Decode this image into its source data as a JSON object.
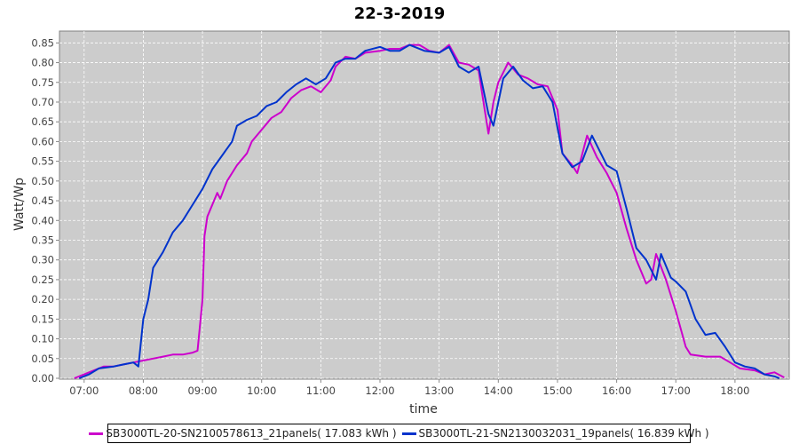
{
  "chart_data": {
    "type": "line",
    "title": "22-3-2019",
    "xlabel": "time",
    "ylabel": "Watt/Wp",
    "xlim": [
      "06:35",
      "18:55"
    ],
    "ylim": [
      0,
      0.88
    ],
    "x_ticks": [
      "07:00",
      "08:00",
      "09:00",
      "10:00",
      "11:00",
      "12:00",
      "13:00",
      "14:00",
      "15:00",
      "16:00",
      "17:00",
      "18:00"
    ],
    "y_ticks": [
      "0.00",
      "0.05",
      "0.10",
      "0.15",
      "0.20",
      "0.25",
      "0.30",
      "0.35",
      "0.40",
      "0.45",
      "0.50",
      "0.55",
      "0.60",
      "0.65",
      "0.70",
      "0.75",
      "0.80",
      "0.85"
    ],
    "grid": true,
    "background": "#cccccc",
    "legend_placement": "bottom",
    "series": [
      {
        "name": "SB3000TL-20-SN2100578613_21panels( 17.083 kWh )",
        "color": "#cc00cc",
        "points": [
          [
            "06:50",
            0.0
          ],
          [
            "07:00",
            0.01
          ],
          [
            "07:10",
            0.02
          ],
          [
            "07:20",
            0.03
          ],
          [
            "07:30",
            0.03
          ],
          [
            "07:40",
            0.035
          ],
          [
            "07:50",
            0.04
          ],
          [
            "08:00",
            0.045
          ],
          [
            "08:10",
            0.05
          ],
          [
            "08:20",
            0.055
          ],
          [
            "08:30",
            0.06
          ],
          [
            "08:40",
            0.06
          ],
          [
            "08:50",
            0.065
          ],
          [
            "08:55",
            0.07
          ],
          [
            "09:00",
            0.2
          ],
          [
            "09:02",
            0.36
          ],
          [
            "09:05",
            0.41
          ],
          [
            "09:10",
            0.44
          ],
          [
            "09:15",
            0.47
          ],
          [
            "09:18",
            0.455
          ],
          [
            "09:25",
            0.5
          ],
          [
            "09:35",
            0.54
          ],
          [
            "09:45",
            0.57
          ],
          [
            "09:50",
            0.6
          ],
          [
            "10:00",
            0.63
          ],
          [
            "10:10",
            0.66
          ],
          [
            "10:20",
            0.675
          ],
          [
            "10:30",
            0.71
          ],
          [
            "10:40",
            0.73
          ],
          [
            "10:50",
            0.74
          ],
          [
            "11:00",
            0.725
          ],
          [
            "11:10",
            0.755
          ],
          [
            "11:15",
            0.79
          ],
          [
            "11:25",
            0.815
          ],
          [
            "11:35",
            0.81
          ],
          [
            "11:45",
            0.825
          ],
          [
            "12:00",
            0.83
          ],
          [
            "12:10",
            0.835
          ],
          [
            "12:20",
            0.835
          ],
          [
            "12:30",
            0.845
          ],
          [
            "12:40",
            0.845
          ],
          [
            "12:50",
            0.83
          ],
          [
            "13:00",
            0.825
          ],
          [
            "13:10",
            0.845
          ],
          [
            "13:20",
            0.8
          ],
          [
            "13:30",
            0.795
          ],
          [
            "13:40",
            0.78
          ],
          [
            "13:45",
            0.7
          ],
          [
            "13:50",
            0.62
          ],
          [
            "13:55",
            0.7
          ],
          [
            "14:00",
            0.75
          ],
          [
            "14:10",
            0.8
          ],
          [
            "14:20",
            0.77
          ],
          [
            "14:30",
            0.76
          ],
          [
            "14:40",
            0.745
          ],
          [
            "14:50",
            0.74
          ],
          [
            "15:00",
            0.68
          ],
          [
            "15:05",
            0.57
          ],
          [
            "15:15",
            0.54
          ],
          [
            "15:20",
            0.52
          ],
          [
            "15:30",
            0.615
          ],
          [
            "15:40",
            0.56
          ],
          [
            "15:50",
            0.52
          ],
          [
            "16:00",
            0.47
          ],
          [
            "16:10",
            0.38
          ],
          [
            "16:20",
            0.3
          ],
          [
            "16:30",
            0.24
          ],
          [
            "16:35",
            0.25
          ],
          [
            "16:40",
            0.315
          ],
          [
            "16:50",
            0.25
          ],
          [
            "17:00",
            0.17
          ],
          [
            "17:10",
            0.08
          ],
          [
            "17:15",
            0.06
          ],
          [
            "17:30",
            0.055
          ],
          [
            "17:45",
            0.055
          ],
          [
            "17:55",
            0.04
          ],
          [
            "18:05",
            0.025
          ],
          [
            "18:20",
            0.02
          ],
          [
            "18:30",
            0.01
          ],
          [
            "18:40",
            0.015
          ],
          [
            "18:50",
            0.002
          ]
        ]
      },
      {
        "name": "SB3000TL-21-SN2130032031_19panels( 16.839 kWh )",
        "color": "#0033cc",
        "points": [
          [
            "06:55",
            0.0
          ],
          [
            "07:05",
            0.01
          ],
          [
            "07:15",
            0.025
          ],
          [
            "07:30",
            0.03
          ],
          [
            "07:40",
            0.035
          ],
          [
            "07:50",
            0.04
          ],
          [
            "07:55",
            0.03
          ],
          [
            "08:00",
            0.15
          ],
          [
            "08:05",
            0.2
          ],
          [
            "08:10",
            0.28
          ],
          [
            "08:20",
            0.32
          ],
          [
            "08:30",
            0.37
          ],
          [
            "08:40",
            0.4
          ],
          [
            "08:50",
            0.44
          ],
          [
            "09:00",
            0.48
          ],
          [
            "09:10",
            0.53
          ],
          [
            "09:20",
            0.565
          ],
          [
            "09:30",
            0.6
          ],
          [
            "09:35",
            0.64
          ],
          [
            "09:45",
            0.655
          ],
          [
            "09:55",
            0.665
          ],
          [
            "10:05",
            0.69
          ],
          [
            "10:15",
            0.7
          ],
          [
            "10:25",
            0.725
          ],
          [
            "10:35",
            0.745
          ],
          [
            "10:45",
            0.76
          ],
          [
            "10:55",
            0.745
          ],
          [
            "11:05",
            0.76
          ],
          [
            "11:15",
            0.8
          ],
          [
            "11:25",
            0.81
          ],
          [
            "11:35",
            0.81
          ],
          [
            "11:45",
            0.83
          ],
          [
            "12:00",
            0.84
          ],
          [
            "12:10",
            0.83
          ],
          [
            "12:20",
            0.83
          ],
          [
            "12:30",
            0.845
          ],
          [
            "12:45",
            0.83
          ],
          [
            "13:00",
            0.825
          ],
          [
            "13:10",
            0.84
          ],
          [
            "13:20",
            0.79
          ],
          [
            "13:30",
            0.775
          ],
          [
            "13:40",
            0.79
          ],
          [
            "13:50",
            0.67
          ],
          [
            "13:55",
            0.64
          ],
          [
            "14:05",
            0.76
          ],
          [
            "14:15",
            0.79
          ],
          [
            "14:25",
            0.755
          ],
          [
            "14:35",
            0.735
          ],
          [
            "14:45",
            0.74
          ],
          [
            "14:55",
            0.7
          ],
          [
            "15:05",
            0.57
          ],
          [
            "15:15",
            0.535
          ],
          [
            "15:25",
            0.55
          ],
          [
            "15:35",
            0.615
          ],
          [
            "15:50",
            0.54
          ],
          [
            "16:00",
            0.525
          ],
          [
            "16:10",
            0.43
          ],
          [
            "16:20",
            0.33
          ],
          [
            "16:30",
            0.3
          ],
          [
            "16:40",
            0.25
          ],
          [
            "16:45",
            0.315
          ],
          [
            "16:55",
            0.255
          ],
          [
            "17:00",
            0.245
          ],
          [
            "17:10",
            0.22
          ],
          [
            "17:20",
            0.15
          ],
          [
            "17:30",
            0.11
          ],
          [
            "17:40",
            0.115
          ],
          [
            "17:50",
            0.08
          ],
          [
            "18:00",
            0.04
          ],
          [
            "18:10",
            0.03
          ],
          [
            "18:20",
            0.025
          ],
          [
            "18:30",
            0.01
          ],
          [
            "18:40",
            0.005
          ],
          [
            "18:45",
            0.0
          ]
        ]
      }
    ]
  }
}
